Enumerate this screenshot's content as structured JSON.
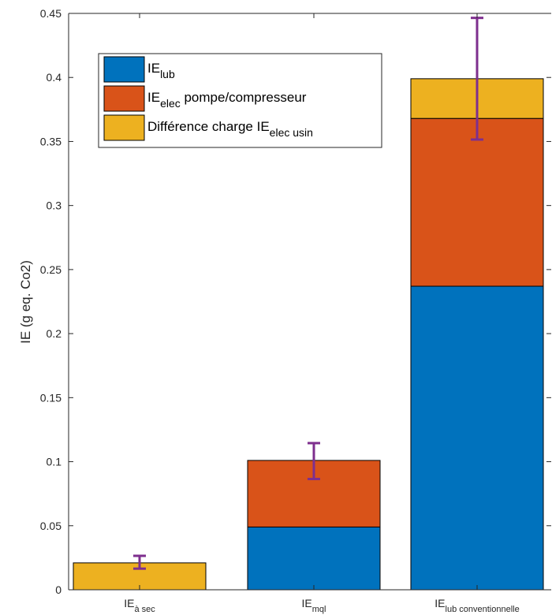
{
  "chart_data": {
    "type": "bar",
    "stacked": true,
    "categories": [
      {
        "main": "IE",
        "sub": "à sec"
      },
      {
        "main": "IE",
        "sub": "mql"
      },
      {
        "main": "IE",
        "sub": "lub conventionnelle"
      }
    ],
    "series": [
      {
        "name": {
          "main": "IE",
          "sub": "lub",
          "suffix": ""
        },
        "color": "#0072BD",
        "values": [
          0,
          0.049,
          0.237
        ]
      },
      {
        "name": {
          "main": "IE",
          "sub": "elec",
          "suffix": " pompe/compresseur"
        },
        "color": "#D95319",
        "values": [
          0,
          0.052,
          0.131
        ]
      },
      {
        "name": {
          "main": "Différence charge IE",
          "sub": "elec usin",
          "suffix": ""
        },
        "color": "#EDB120",
        "values": [
          0.021,
          0,
          0.031
        ]
      }
    ],
    "error_bars": {
      "color": "#7E2F8E",
      "center": [
        0.0215,
        0.1005,
        0.399
      ],
      "lower": [
        0.0165,
        0.0865,
        0.3515
      ],
      "upper": [
        0.0265,
        0.1145,
        0.4465
      ]
    },
    "ylabel": "IE (g eq. Co2)",
    "xlabel": "",
    "title": "",
    "ylim": [
      0,
      0.45
    ],
    "yticks": [
      "0",
      "0.05",
      "0.1",
      "0.15",
      "0.2",
      "0.25",
      "0.3",
      "0.35",
      "0.4",
      "0.45"
    ],
    "grid": false,
    "legend_position": "top-left"
  }
}
